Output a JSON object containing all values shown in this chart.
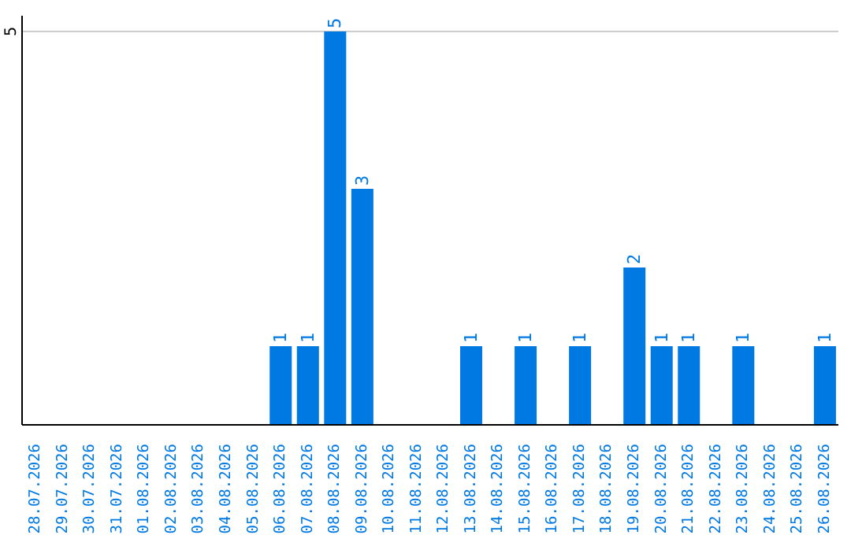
{
  "chart_data": {
    "type": "bar",
    "categories": [
      "28.07.2026",
      "29.07.2026",
      "30.07.2026",
      "31.07.2026",
      "01.08.2026",
      "02.08.2026",
      "03.08.2026",
      "04.08.2026",
      "05.08.2026",
      "06.08.2026",
      "07.08.2026",
      "08.08.2026",
      "09.08.2026",
      "10.08.2026",
      "11.08.2026",
      "12.08.2026",
      "13.08.2026",
      "14.08.2026",
      "15.08.2026",
      "16.08.2026",
      "17.08.2026",
      "18.08.2026",
      "19.08.2026",
      "20.08.2026",
      "21.08.2026",
      "22.08.2026",
      "23.08.2026",
      "24.08.2026",
      "25.08.2026",
      "26.08.2026"
    ],
    "values": [
      0,
      0,
      0,
      0,
      0,
      0,
      0,
      0,
      0,
      1,
      1,
      5,
      3,
      0,
      0,
      0,
      1,
      0,
      1,
      0,
      1,
      0,
      2,
      1,
      1,
      0,
      1,
      0,
      0,
      1
    ],
    "value_labels": [
      null,
      null,
      null,
      null,
      null,
      null,
      null,
      null,
      null,
      "1",
      "1",
      "5",
      "3",
      null,
      null,
      null,
      "1",
      null,
      "1",
      null,
      "1",
      null,
      "2",
      "1",
      "1",
      null,
      "1",
      null,
      null,
      "1"
    ],
    "color": "#0079e3",
    "ylim": [
      0,
      5.2
    ],
    "yticks": [
      5
    ],
    "grid": "y"
  }
}
